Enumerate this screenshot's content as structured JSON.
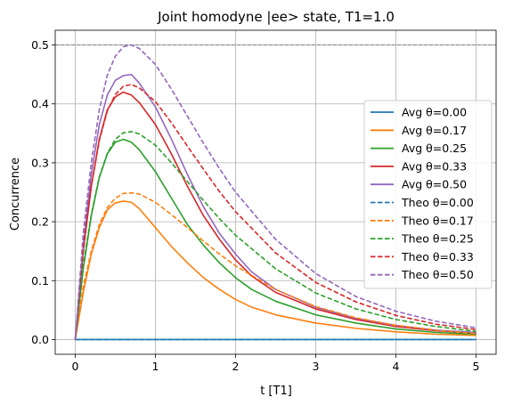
{
  "chart_data": {
    "type": "line",
    "title": "Joint homodyne |ee> state, T1=1.0",
    "xlabel": "t [T1]",
    "ylabel": "Concurrence",
    "xlim": [
      -0.25,
      5.25
    ],
    "ylim": [
      -0.025,
      0.525
    ],
    "x_ticks": [
      "0",
      "1",
      "2",
      "3",
      "4",
      "5"
    ],
    "y_ticks": [
      "0.0",
      "0.1",
      "0.2",
      "0.3",
      "0.4",
      "0.5"
    ],
    "grid": true,
    "legend_position": "right",
    "reference_line": {
      "y": 0.5,
      "style": "dashed",
      "color": "#808080"
    },
    "series": [
      {
        "name": "Avg θ=0.00",
        "color": "#1f77b4",
        "dashed": false,
        "points": [
          [
            0,
            0
          ],
          [
            1,
            0
          ],
          [
            2,
            0
          ],
          [
            3,
            0
          ],
          [
            4,
            0
          ],
          [
            5,
            0
          ]
        ]
      },
      {
        "name": "Avg θ=0.17",
        "color": "#ff7f0e",
        "dashed": false,
        "points": [
          [
            0,
            0
          ],
          [
            0.1,
            0.08
          ],
          [
            0.2,
            0.145
          ],
          [
            0.3,
            0.19
          ],
          [
            0.4,
            0.22
          ],
          [
            0.5,
            0.232
          ],
          [
            0.6,
            0.235
          ],
          [
            0.7,
            0.233
          ],
          [
            0.8,
            0.222
          ],
          [
            1.0,
            0.19
          ],
          [
            1.2,
            0.158
          ],
          [
            1.4,
            0.13
          ],
          [
            1.6,
            0.105
          ],
          [
            1.8,
            0.085
          ],
          [
            2.0,
            0.068
          ],
          [
            2.2,
            0.055
          ],
          [
            2.5,
            0.042
          ],
          [
            3.0,
            0.028
          ],
          [
            3.5,
            0.019
          ],
          [
            4.0,
            0.013
          ],
          [
            4.5,
            0.009
          ],
          [
            5.0,
            0.007
          ]
        ]
      },
      {
        "name": "Avg θ=0.25",
        "color": "#2ca02c",
        "dashed": false,
        "points": [
          [
            0,
            0
          ],
          [
            0.1,
            0.12
          ],
          [
            0.2,
            0.21
          ],
          [
            0.3,
            0.275
          ],
          [
            0.4,
            0.315
          ],
          [
            0.5,
            0.335
          ],
          [
            0.6,
            0.34
          ],
          [
            0.7,
            0.335
          ],
          [
            0.8,
            0.322
          ],
          [
            1.0,
            0.285
          ],
          [
            1.2,
            0.24
          ],
          [
            1.4,
            0.195
          ],
          [
            1.6,
            0.16
          ],
          [
            1.8,
            0.13
          ],
          [
            2.0,
            0.105
          ],
          [
            2.2,
            0.085
          ],
          [
            2.5,
            0.065
          ],
          [
            3.0,
            0.042
          ],
          [
            3.5,
            0.028
          ],
          [
            4.0,
            0.018
          ],
          [
            4.5,
            0.012
          ],
          [
            5.0,
            0.009
          ]
        ]
      },
      {
        "name": "Avg θ=0.33",
        "color": "#d62728",
        "dashed": false,
        "points": [
          [
            0,
            0
          ],
          [
            0.1,
            0.15
          ],
          [
            0.2,
            0.26
          ],
          [
            0.3,
            0.34
          ],
          [
            0.4,
            0.39
          ],
          [
            0.5,
            0.412
          ],
          [
            0.6,
            0.42
          ],
          [
            0.7,
            0.415
          ],
          [
            0.8,
            0.402
          ],
          [
            1.0,
            0.365
          ],
          [
            1.2,
            0.315
          ],
          [
            1.4,
            0.26
          ],
          [
            1.6,
            0.21
          ],
          [
            1.8,
            0.17
          ],
          [
            2.0,
            0.135
          ],
          [
            2.2,
            0.108
          ],
          [
            2.5,
            0.08
          ],
          [
            3.0,
            0.052
          ],
          [
            3.5,
            0.034
          ],
          [
            4.0,
            0.022
          ],
          [
            4.5,
            0.015
          ],
          [
            5.0,
            0.011
          ]
        ]
      },
      {
        "name": "Avg θ=0.50",
        "color": "#9467bd",
        "dashed": false,
        "points": [
          [
            0,
            0
          ],
          [
            0.1,
            0.16
          ],
          [
            0.2,
            0.28
          ],
          [
            0.3,
            0.365
          ],
          [
            0.4,
            0.415
          ],
          [
            0.5,
            0.44
          ],
          [
            0.6,
            0.448
          ],
          [
            0.7,
            0.45
          ],
          [
            0.8,
            0.435
          ],
          [
            1.0,
            0.395
          ],
          [
            1.2,
            0.34
          ],
          [
            1.4,
            0.28
          ],
          [
            1.6,
            0.225
          ],
          [
            1.8,
            0.18
          ],
          [
            2.0,
            0.145
          ],
          [
            2.2,
            0.115
          ],
          [
            2.5,
            0.085
          ],
          [
            3.0,
            0.055
          ],
          [
            3.5,
            0.036
          ],
          [
            4.0,
            0.024
          ],
          [
            4.5,
            0.016
          ],
          [
            5.0,
            0.012
          ]
        ]
      },
      {
        "name": "Theo θ=0.00",
        "color": "#1f77b4",
        "dashed": true,
        "points": [
          [
            0,
            0
          ],
          [
            1,
            0
          ],
          [
            2,
            0
          ],
          [
            3,
            0
          ],
          [
            4,
            0
          ],
          [
            5,
            0
          ]
        ]
      },
      {
        "name": "Theo θ=0.17",
        "color": "#ff7f0e",
        "dashed": true,
        "points": [
          [
            0,
            0
          ],
          [
            0.1,
            0.09
          ],
          [
            0.2,
            0.15
          ],
          [
            0.3,
            0.195
          ],
          [
            0.4,
            0.224
          ],
          [
            0.5,
            0.24
          ],
          [
            0.6,
            0.248
          ],
          [
            0.7,
            0.249
          ],
          [
            0.8,
            0.247
          ],
          [
            1.0,
            0.233
          ],
          [
            1.2,
            0.212
          ],
          [
            1.4,
            0.19
          ],
          [
            1.6,
            0.167
          ],
          [
            1.8,
            0.145
          ],
          [
            2.0,
            0.125
          ],
          [
            2.5,
            0.085
          ],
          [
            3.0,
            0.056
          ],
          [
            3.5,
            0.037
          ],
          [
            4.0,
            0.024
          ],
          [
            4.5,
            0.016
          ],
          [
            5.0,
            0.01
          ]
        ]
      },
      {
        "name": "Theo θ=0.25",
        "color": "#2ca02c",
        "dashed": true,
        "points": [
          [
            0,
            0
          ],
          [
            0.1,
            0.127
          ],
          [
            0.2,
            0.212
          ],
          [
            0.3,
            0.276
          ],
          [
            0.4,
            0.316
          ],
          [
            0.5,
            0.34
          ],
          [
            0.6,
            0.351
          ],
          [
            0.7,
            0.353
          ],
          [
            0.8,
            0.349
          ],
          [
            1.0,
            0.33
          ],
          [
            1.2,
            0.3
          ],
          [
            1.4,
            0.268
          ],
          [
            1.6,
            0.236
          ],
          [
            1.8,
            0.205
          ],
          [
            2.0,
            0.177
          ],
          [
            2.5,
            0.12
          ],
          [
            3.0,
            0.079
          ],
          [
            3.5,
            0.052
          ],
          [
            4.0,
            0.034
          ],
          [
            4.5,
            0.022
          ],
          [
            5.0,
            0.014
          ]
        ]
      },
      {
        "name": "Theo θ=0.33",
        "color": "#d62728",
        "dashed": true,
        "points": [
          [
            0,
            0
          ],
          [
            0.1,
            0.156
          ],
          [
            0.2,
            0.26
          ],
          [
            0.3,
            0.338
          ],
          [
            0.4,
            0.388
          ],
          [
            0.5,
            0.416
          ],
          [
            0.6,
            0.43
          ],
          [
            0.7,
            0.433
          ],
          [
            0.8,
            0.427
          ],
          [
            1.0,
            0.404
          ],
          [
            1.2,
            0.368
          ],
          [
            1.4,
            0.328
          ],
          [
            1.6,
            0.289
          ],
          [
            1.8,
            0.251
          ],
          [
            2.0,
            0.217
          ],
          [
            2.5,
            0.147
          ],
          [
            3.0,
            0.097
          ],
          [
            3.5,
            0.064
          ],
          [
            4.0,
            0.041
          ],
          [
            4.5,
            0.026
          ],
          [
            5.0,
            0.017
          ]
        ]
      },
      {
        "name": "Theo θ=0.50",
        "color": "#9467bd",
        "dashed": true,
        "points": [
          [
            0,
            0
          ],
          [
            0.1,
            0.18
          ],
          [
            0.2,
            0.3
          ],
          [
            0.3,
            0.39
          ],
          [
            0.4,
            0.449
          ],
          [
            0.5,
            0.481
          ],
          [
            0.6,
            0.497
          ],
          [
            0.7,
            0.5
          ],
          [
            0.8,
            0.494
          ],
          [
            1.0,
            0.467
          ],
          [
            1.2,
            0.425
          ],
          [
            1.4,
            0.379
          ],
          [
            1.6,
            0.333
          ],
          [
            1.8,
            0.29
          ],
          [
            2.0,
            0.25
          ],
          [
            2.5,
            0.17
          ],
          [
            3.0,
            0.112
          ],
          [
            3.5,
            0.073
          ],
          [
            4.0,
            0.048
          ],
          [
            4.5,
            0.031
          ],
          [
            5.0,
            0.02
          ]
        ]
      }
    ]
  }
}
